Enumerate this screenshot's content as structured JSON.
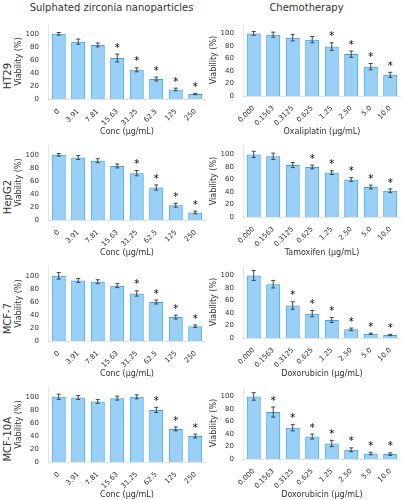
{
  "chart_data": [
    {
      "type": "bar",
      "title": "Sulphated zirconia nanoparticles",
      "subtitle": "HT29",
      "categories": [
        "0",
        "3.91",
        "7.81",
        "15.63",
        "31.25",
        "62.5",
        "125",
        "250"
      ],
      "values": [
        100,
        88,
        83,
        63,
        45,
        31,
        15,
        8
      ],
      "errors": [
        2,
        4,
        3,
        6,
        3,
        3,
        2,
        1
      ],
      "xlabel": "Conc (μg/mL)",
      "ylabel": "Viability (%)",
      "ylim": [
        0,
        115
      ],
      "yticks": [
        0,
        20,
        40,
        60,
        80,
        100
      ],
      "grid": false,
      "annotations": [
        {
          "text": "*",
          "category": "15.63"
        },
        {
          "text": "*",
          "category": "31.25"
        },
        {
          "text": "*",
          "category": "62.5"
        },
        {
          "text": "*",
          "category": "125"
        },
        {
          "text": "*",
          "category": "250"
        }
      ]
    },
    {
      "type": "bar",
      "title": "Chemotherapy",
      "categories": [
        "0.000",
        "0.1563",
        "0.3125",
        "0.625",
        "1.25",
        "2.50",
        "5.0",
        "10.0"
      ],
      "values": [
        100,
        98,
        93,
        90,
        79,
        67,
        47,
        34
      ],
      "errors": [
        3,
        4,
        5,
        5,
        6,
        5,
        5,
        4
      ],
      "xlabel": "Oxaliplatin (μg/mL)",
      "ylabel": "Viability (%)",
      "ylim": [
        0,
        115
      ],
      "yticks": [
        0,
        20,
        40,
        60,
        80,
        100
      ],
      "grid": false,
      "annotations": [
        {
          "text": "*",
          "category": "1.25"
        },
        {
          "text": "*",
          "category": "2.50"
        },
        {
          "text": "*",
          "category": "5.0"
        },
        {
          "text": "*",
          "category": "10.0"
        }
      ]
    },
    {
      "type": "bar",
      "subtitle": "HepG2",
      "categories": [
        "0",
        "3.91",
        "7.81",
        "15.63",
        "31.25",
        "62.5",
        "125",
        "250"
      ],
      "values": [
        100,
        96,
        91,
        83,
        72,
        50,
        23,
        12
      ],
      "errors": [
        2,
        3,
        3,
        3,
        4,
        4,
        3,
        2
      ],
      "xlabel": "Conc (μg/mL)",
      "ylabel": "Viability (%)",
      "ylim": [
        0,
        115
      ],
      "yticks": [
        0,
        20,
        40,
        60,
        80,
        100
      ],
      "grid": false,
      "annotations": [
        {
          "text": "*",
          "category": "31.25"
        },
        {
          "text": "*",
          "category": "62.5"
        },
        {
          "text": "*",
          "category": "125"
        },
        {
          "text": "*",
          "category": "250"
        }
      ]
    },
    {
      "type": "bar",
      "categories": [
        "0.000",
        "0.1563",
        "0.3125",
        "0.625",
        "1.25",
        "2.50",
        "5.0",
        "10.0"
      ],
      "values": [
        100,
        97,
        83,
        80,
        71,
        60,
        48,
        42
      ],
      "errors": [
        5,
        5,
        4,
        3,
        3,
        3,
        3,
        3
      ],
      "xlabel": "Tamoxifen (μg/mL)",
      "ylabel": "Viability (%)",
      "ylim": [
        0,
        115
      ],
      "yticks": [
        0,
        20,
        40,
        60,
        80,
        100
      ],
      "grid": false,
      "annotations": [
        {
          "text": "*",
          "category": "0.625"
        },
        {
          "text": "*",
          "category": "1.25"
        },
        {
          "text": "*",
          "category": "2.50"
        },
        {
          "text": "*",
          "category": "5.0"
        },
        {
          "text": "*",
          "category": "10.0"
        }
      ]
    },
    {
      "type": "bar",
      "subtitle": "MCF-7",
      "categories": [
        "0",
        "3.91",
        "7.81",
        "15.63",
        "31.25",
        "62.5",
        "125",
        "250"
      ],
      "values": [
        100,
        93,
        91,
        85,
        73,
        60,
        37,
        23
      ],
      "errors": [
        5,
        3,
        3,
        3,
        4,
        3,
        3,
        2
      ],
      "xlabel": "Conc (μg/mL)",
      "ylabel": "Viability (%)",
      "ylim": [
        0,
        115
      ],
      "yticks": [
        0,
        20,
        40,
        60,
        80,
        100
      ],
      "grid": false,
      "annotations": [
        {
          "text": "*",
          "category": "31.25"
        },
        {
          "text": "*",
          "category": "62.5"
        },
        {
          "text": "*",
          "category": "125"
        },
        {
          "text": "*",
          "category": "250"
        }
      ]
    },
    {
      "type": "bar",
      "categories": [
        "0.000",
        "0.1563",
        "0.3125",
        "0.625",
        "1.25",
        "2.50",
        "5.0",
        "10.0"
      ],
      "values": [
        100,
        86,
        52,
        39,
        29,
        14,
        7,
        5
      ],
      "errors": [
        8,
        6,
        6,
        5,
        4,
        2,
        1,
        1
      ],
      "xlabel": "Doxorubicin (μg/mL)",
      "ylabel": "Viability (%)",
      "ylim": [
        0,
        115
      ],
      "yticks": [
        0,
        20,
        40,
        60,
        80,
        100
      ],
      "grid": false,
      "annotations": [
        {
          "text": "*",
          "category": "0.3125"
        },
        {
          "text": "*",
          "category": "0.625"
        },
        {
          "text": "*",
          "category": "1.25"
        },
        {
          "text": "*",
          "category": "2.50"
        },
        {
          "text": "*",
          "category": "5.0"
        },
        {
          "text": "*",
          "category": "10.0"
        }
      ]
    },
    {
      "type": "bar",
      "subtitle": "MCF-10A",
      "categories": [
        "0",
        "3.91",
        "7.81",
        "15.63",
        "31.25",
        "62.5",
        "125",
        "250"
      ],
      "values": [
        100,
        99,
        93,
        98,
        100,
        80,
        51,
        40
      ],
      "errors": [
        4,
        3,
        3,
        3,
        3,
        4,
        3,
        3
      ],
      "xlabel": "Conc (μg/mL)",
      "ylabel": "Viability (%)",
      "ylim": [
        0,
        115
      ],
      "yticks": [
        0,
        20,
        40,
        60,
        80,
        100
      ],
      "grid": false,
      "annotations": [
        {
          "text": "*",
          "category": "62.5"
        },
        {
          "text": "*",
          "category": "125"
        },
        {
          "text": "*",
          "category": "250"
        }
      ]
    },
    {
      "type": "bar",
      "categories": [
        "0.000",
        "0.1563",
        "0.3125",
        "0.625",
        "1.25",
        "2.50",
        "5.0",
        "10.0"
      ],
      "values": [
        100,
        75,
        50,
        36,
        25,
        15,
        9,
        8
      ],
      "errors": [
        6,
        8,
        5,
        4,
        5,
        3,
        2,
        2
      ],
      "xlabel": "Doxorubicin (μg/mL)",
      "ylabel": "Viability (%)",
      "ylim": [
        0,
        115
      ],
      "yticks": [
        0,
        20,
        40,
        60,
        80,
        100
      ],
      "grid": false,
      "annotations": [
        {
          "text": "*",
          "category": "0.1563"
        },
        {
          "text": "*",
          "category": "0.3125"
        },
        {
          "text": "*",
          "category": "0.625"
        },
        {
          "text": "*",
          "category": "1.25"
        },
        {
          "text": "*",
          "category": "2.50"
        },
        {
          "text": "*",
          "category": "5.0"
        },
        {
          "text": "*",
          "category": "10.0"
        }
      ]
    }
  ]
}
